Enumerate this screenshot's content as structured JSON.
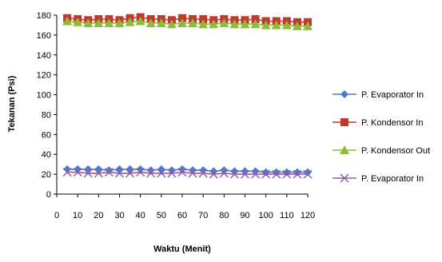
{
  "chart_data": {
    "type": "line",
    "xlabel": "Waktu (Menit)",
    "ylabel": "Tekanan (Psi)",
    "xlim": [
      0,
      120
    ],
    "ylim": [
      0,
      180
    ],
    "xticks": [
      0,
      10,
      20,
      30,
      40,
      50,
      60,
      70,
      80,
      90,
      100,
      110,
      120
    ],
    "yticks": [
      0,
      20,
      40,
      60,
      80,
      100,
      120,
      140,
      160,
      180
    ],
    "grid": false,
    "legend_position": "right",
    "x": [
      5,
      10,
      15,
      20,
      25,
      30,
      35,
      40,
      45,
      50,
      55,
      60,
      65,
      70,
      75,
      80,
      85,
      90,
      95,
      100,
      105,
      110,
      115,
      120
    ],
    "series": [
      {
        "name": "P. Evaporator In",
        "marker": "diamond",
        "color": "#4a7cc7",
        "values": [
          25,
          25,
          25,
          25,
          24,
          25,
          25,
          25,
          24,
          25,
          24,
          25,
          24,
          24,
          23,
          24,
          23,
          23,
          23,
          22,
          22,
          22,
          22,
          22
        ]
      },
      {
        "name": "P. Kondensor In",
        "marker": "square",
        "color": "#c0392b",
        "values": [
          177,
          176,
          175,
          176,
          176,
          175,
          177,
          178,
          176,
          176,
          175,
          177,
          176,
          176,
          175,
          176,
          175,
          175,
          176,
          174,
          174,
          174,
          173,
          173
        ]
      },
      {
        "name": "P. Kondensor Out",
        "marker": "triangle",
        "color": "#8dbb3a",
        "values": [
          174,
          173,
          172,
          172,
          172,
          172,
          173,
          174,
          172,
          172,
          171,
          172,
          172,
          171,
          171,
          172,
          171,
          171,
          171,
          170,
          170,
          170,
          169,
          169
        ]
      },
      {
        "name": "P. Evaporator In",
        "marker": "x",
        "color": "#8e5ea2",
        "values": [
          22,
          22,
          21,
          21,
          22,
          21,
          21,
          22,
          21,
          21,
          21,
          22,
          21,
          21,
          20,
          21,
          20,
          20,
          20,
          20,
          20,
          20,
          20,
          20
        ]
      }
    ]
  }
}
